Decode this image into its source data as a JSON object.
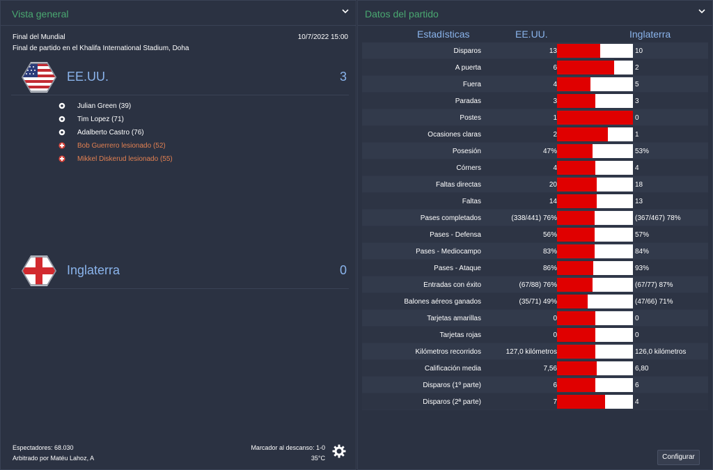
{
  "overview": {
    "title": "Vista general",
    "competition": "Final del Mundial",
    "venue": "Final de partido en el Khalifa International Stadium, Doha",
    "datetime": "10/7/2022 15:00",
    "home": {
      "name": "EE.UU.",
      "score": "3",
      "badge_icon": "usa-flag-badge-icon",
      "events": [
        {
          "type": "goal",
          "icon": "ball-icon",
          "text": "Julian Green (39)"
        },
        {
          "type": "goal",
          "icon": "ball-icon",
          "text": "Tim Lopez (71)"
        },
        {
          "type": "goal",
          "icon": "ball-icon",
          "text": "Adalberto Castro (76)"
        },
        {
          "type": "injury",
          "icon": "injury-cross-icon",
          "text": "Bob Guerrero lesionado (52)"
        },
        {
          "type": "injury",
          "icon": "injury-cross-icon",
          "text": "Mikkel Diskerud lesionado (55)"
        }
      ]
    },
    "away": {
      "name": "Inglaterra",
      "score": "0",
      "badge_icon": "england-flag-badge-icon"
    },
    "attendance": "Espectadores: 68.030",
    "referee": "Arbitrado por Matéu Lahoz, A",
    "halftime": "Marcador al descanso: 1-0",
    "temperature": "35°C"
  },
  "match_data": {
    "title": "Datos del partido",
    "header_stats": "Estadísticas",
    "header_home": "EE.UU.",
    "header_away": "Inglaterra",
    "configure_label": "Configurar",
    "colors": {
      "home_bar": "#e00000",
      "away_bar": "#ffffff"
    },
    "stats": [
      {
        "label": "Disparos",
        "home": "13",
        "away": "10",
        "home_share": 0.565
      },
      {
        "label": "A puerta",
        "home": "6",
        "away": "2",
        "home_share": 0.75
      },
      {
        "label": "Fuera",
        "home": "4",
        "away": "5",
        "home_share": 0.444
      },
      {
        "label": "Paradas",
        "home": "3",
        "away": "3",
        "home_share": 0.5
      },
      {
        "label": "Postes",
        "home": "1",
        "away": "0",
        "home_share": 1.0
      },
      {
        "label": "Ocasiones claras",
        "home": "2",
        "away": "1",
        "home_share": 0.667
      },
      {
        "label": "Posesión",
        "home": "47%",
        "away": "53%",
        "home_share": 0.47
      },
      {
        "label": "Córners",
        "home": "4",
        "away": "4",
        "home_share": 0.5
      },
      {
        "label": "Faltas directas",
        "home": "20",
        "away": "18",
        "home_share": 0.526
      },
      {
        "label": "Faltas",
        "home": "14",
        "away": "13",
        "home_share": 0.519
      },
      {
        "label": "Pases completados",
        "home": "(338/441) 76%",
        "away": "(367/467) 78%",
        "home_share": 0.494
      },
      {
        "label": "Pases - Defensa",
        "home": "56%",
        "away": "57%",
        "home_share": 0.496
      },
      {
        "label": "Pases - Mediocampo",
        "home": "83%",
        "away": "84%",
        "home_share": 0.497
      },
      {
        "label": "Pases - Ataque",
        "home": "86%",
        "away": "93%",
        "home_share": 0.48
      },
      {
        "label": "Entradas con éxito",
        "home": "(67/88) 76%",
        "away": "(67/77) 87%",
        "home_share": 0.466
      },
      {
        "label": "Balones aéreos ganados",
        "home": "(35/71) 49%",
        "away": "(47/66) 71%",
        "home_share": 0.408
      },
      {
        "label": "Tarjetas amarillas",
        "home": "0",
        "away": "0",
        "home_share": 0.5
      },
      {
        "label": "Tarjetas rojas",
        "home": "0",
        "away": "0",
        "home_share": 0.5
      },
      {
        "label": "Kilómetros recorridos",
        "home": "127,0 kilómetros",
        "away": "126,0 kilómetros",
        "home_share": 0.502
      },
      {
        "label": "Calificación media",
        "home": "7,56",
        "away": "6,80",
        "home_share": 0.526
      },
      {
        "label": "Disparos (1º parte)",
        "home": "6",
        "away": "6",
        "home_share": 0.5
      },
      {
        "label": "Disparos (2ª parte)",
        "home": "7",
        "away": "4",
        "home_share": 0.636
      }
    ]
  }
}
